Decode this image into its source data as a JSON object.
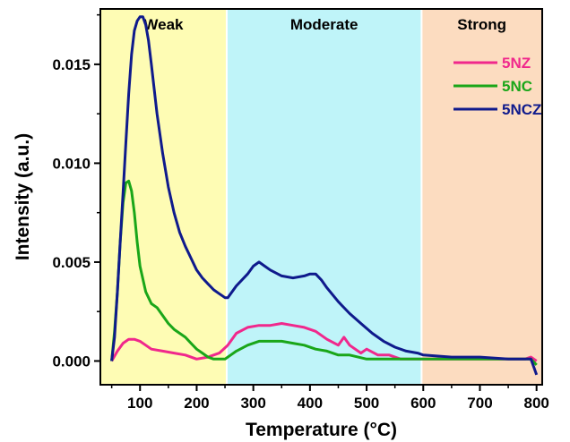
{
  "chart_data": {
    "type": "line",
    "xlabel": "Temperature (°C)",
    "ylabel": "Intensity (a.u.)",
    "xlim": [
      30,
      810
    ],
    "ylim": [
      -0.0012,
      0.0178
    ],
    "x_ticks": [
      100,
      200,
      300,
      400,
      500,
      600,
      700,
      800
    ],
    "y_ticks": [
      0.0,
      0.005,
      0.01,
      0.015
    ],
    "y_tick_labels": [
      "0.000",
      "0.005",
      "0.010",
      "0.015"
    ],
    "grid": false,
    "legend_position": "top-right",
    "regions": [
      {
        "label": "Weak",
        "x_range": [
          30,
          253
        ],
        "color": "#fefcb4"
      },
      {
        "label": "Moderate",
        "x_range": [
          253,
          597
        ],
        "color": "#bff4f9"
      },
      {
        "label": "Strong",
        "x_range": [
          597,
          810
        ],
        "color": "#fcdcc0"
      }
    ],
    "series": [
      {
        "name": "5NZ",
        "color": "#f0288c",
        "x": [
          50,
          60,
          70,
          80,
          90,
          100,
          110,
          120,
          140,
          160,
          180,
          200,
          220,
          240,
          255,
          270,
          290,
          310,
          330,
          350,
          370,
          390,
          410,
          430,
          450,
          460,
          470,
          490,
          500,
          520,
          540,
          560,
          600,
          650,
          700,
          750,
          780,
          790,
          800
        ],
        "y": [
          0.0,
          0.0005,
          0.0009,
          0.0011,
          0.0011,
          0.001,
          0.0008,
          0.0006,
          0.0005,
          0.0004,
          0.0003,
          0.0001,
          0.0002,
          0.0004,
          0.0008,
          0.0014,
          0.0017,
          0.0018,
          0.0018,
          0.0019,
          0.0018,
          0.0017,
          0.0015,
          0.0011,
          0.0008,
          0.0012,
          0.0008,
          0.0004,
          0.0006,
          0.0003,
          0.0003,
          0.0001,
          0.0001,
          0.0001,
          0.0001,
          0.0001,
          0.0001,
          0.0002,
          0.0
        ]
      },
      {
        "name": "5NC",
        "color": "#1aa619",
        "x": [
          50,
          55,
          60,
          65,
          70,
          75,
          80,
          85,
          90,
          95,
          100,
          110,
          120,
          130,
          140,
          150,
          160,
          170,
          180,
          190,
          200,
          210,
          220,
          230,
          240,
          250,
          260,
          270,
          290,
          310,
          330,
          350,
          370,
          390,
          410,
          430,
          450,
          470,
          500,
          550,
          600,
          650,
          700,
          750,
          780,
          790,
          800
        ],
        "y": [
          0.0,
          0.0015,
          0.0035,
          0.006,
          0.008,
          0.009,
          0.0091,
          0.0086,
          0.0075,
          0.006,
          0.0048,
          0.0035,
          0.0029,
          0.0027,
          0.0023,
          0.0019,
          0.0016,
          0.0014,
          0.0012,
          0.0009,
          0.0006,
          0.0004,
          0.0002,
          0.0001,
          0.0001,
          0.0001,
          0.0003,
          0.0005,
          0.0008,
          0.001,
          0.001,
          0.001,
          0.0009,
          0.0008,
          0.0006,
          0.0005,
          0.0003,
          0.0003,
          0.0001,
          0.0001,
          0.0001,
          0.0001,
          0.0001,
          0.0001,
          0.0001,
          0.0001,
          -0.0002
        ]
      },
      {
        "name": "5NCZ",
        "color": "#0f1a8c",
        "x": [
          50,
          55,
          60,
          65,
          70,
          75,
          80,
          85,
          90,
          95,
          100,
          105,
          110,
          115,
          120,
          130,
          140,
          150,
          160,
          170,
          180,
          190,
          200,
          210,
          220,
          230,
          240,
          250,
          255,
          270,
          290,
          300,
          310,
          320,
          330,
          350,
          370,
          390,
          400,
          410,
          420,
          430,
          450,
          470,
          490,
          510,
          530,
          550,
          570,
          590,
          600,
          650,
          700,
          750,
          780,
          790,
          800
        ],
        "y": [
          0.0,
          0.0012,
          0.0035,
          0.006,
          0.0085,
          0.011,
          0.0135,
          0.0155,
          0.0167,
          0.0172,
          0.0174,
          0.0174,
          0.017,
          0.0162,
          0.015,
          0.0125,
          0.0105,
          0.0088,
          0.0075,
          0.0065,
          0.0058,
          0.0052,
          0.0046,
          0.0042,
          0.0039,
          0.0036,
          0.0034,
          0.0032,
          0.0032,
          0.0038,
          0.0044,
          0.0048,
          0.005,
          0.0048,
          0.0046,
          0.0043,
          0.0042,
          0.0043,
          0.0044,
          0.0044,
          0.0041,
          0.0037,
          0.003,
          0.0024,
          0.0019,
          0.0014,
          0.001,
          0.0007,
          0.0005,
          0.0004,
          0.0003,
          0.0002,
          0.0002,
          0.0001,
          0.0001,
          0.0001,
          -0.0007
        ]
      }
    ]
  }
}
